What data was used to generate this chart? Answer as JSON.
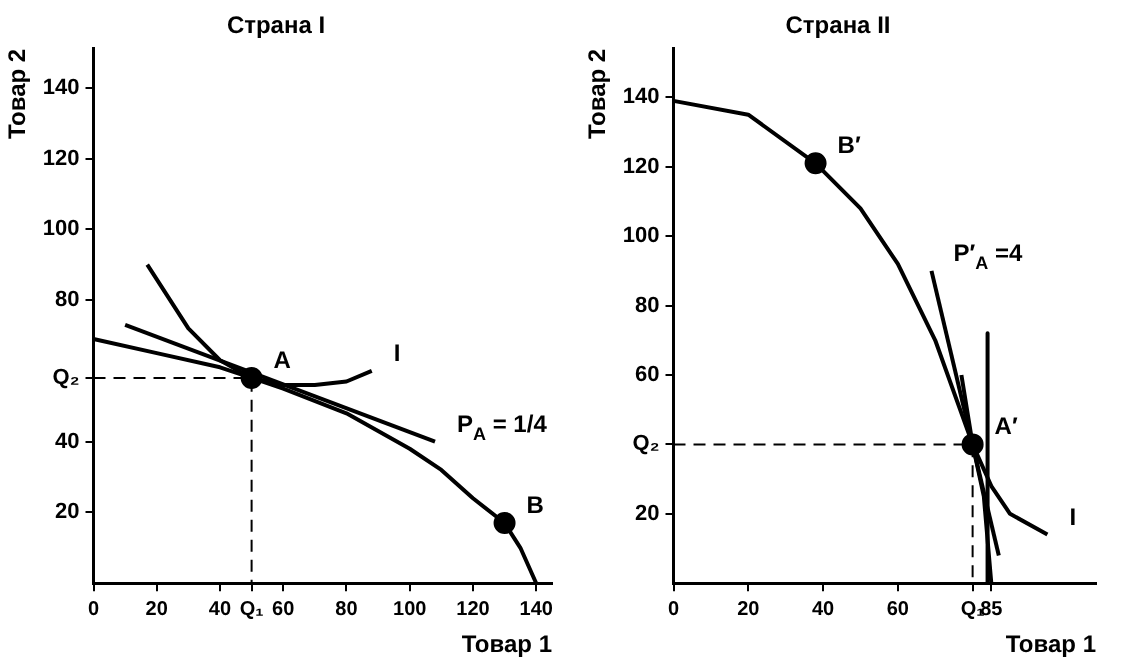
{
  "chart_data": [
    {
      "type": "line",
      "title": "Страна I",
      "xlabel": "Товар 1",
      "ylabel": "Товар 2",
      "xlim": [
        0,
        145
      ],
      "ylim": [
        0,
        151
      ],
      "xticks": [
        0,
        20,
        40,
        {
          "value": 50,
          "label": "Q₁"
        },
        60,
        80,
        100,
        120,
        140
      ],
      "yticks": [
        20,
        40,
        {
          "value": 58,
          "label": "Q₂"
        },
        80,
        100,
        120,
        140
      ],
      "grid": false,
      "legend": false,
      "series": [
        {
          "color": "#000000",
          "x": [
            0,
            20,
            40,
            50,
            60,
            80,
            100,
            110,
            120,
            130,
            135,
            140
          ],
          "values": [
            69,
            65,
            61,
            58,
            55,
            48,
            38,
            32,
            24,
            17,
            10,
            0
          ]
        },
        {
          "color": "#000000",
          "x": [
            17,
            30,
            40,
            50,
            60,
            70,
            80,
            88
          ],
          "values": [
            90,
            72,
            63,
            58,
            56,
            56,
            57,
            60
          ]
        },
        {
          "color": "#000000",
          "x": [
            10,
            108
          ],
          "values": [
            73,
            40
          ]
        },
        {
          "color": "#000000",
          "line_style": "dashed",
          "x": [
            0,
            50,
            50
          ],
          "values": [
            58,
            58,
            0
          ]
        },
        {
          "type": "scatter",
          "marker": "circle",
          "color": "#000000",
          "x": [
            50,
            130
          ],
          "values": [
            58,
            17
          ]
        }
      ],
      "annotations": [
        {
          "text": "A",
          "x": 50,
          "y": 58
        },
        {
          "text": "B",
          "x": 130,
          "y": 17
        },
        {
          "text": "I",
          "x": 88,
          "y": 60
        },
        {
          "text": "P$_{A}$ = 1/4",
          "x": 108,
          "y": 40
        }
      ]
    },
    {
      "type": "line",
      "title": "Страна II",
      "xlabel": "Товар 1",
      "ylabel": "Товар 2",
      "xlim": [
        0,
        113
      ],
      "ylim": [
        0,
        154
      ],
      "xticks": [
        0,
        20,
        40,
        60,
        {
          "value": 80,
          "label": "Q₁"
        },
        85
      ],
      "yticks": [
        20,
        {
          "value": 40,
          "label": "Q₂"
        },
        60,
        80,
        100,
        120,
        140
      ],
      "grid": false,
      "legend": false,
      "series": [
        {
          "color": "#000000",
          "x": [
            0,
            20,
            38,
            50,
            60,
            70,
            80,
            83,
            85
          ],
          "values": [
            139,
            135,
            121,
            108,
            92,
            70,
            40,
            25,
            0
          ]
        },
        {
          "color": "#000000",
          "x": [
            77,
            80,
            85,
            90,
            100
          ],
          "values": [
            60,
            40,
            28,
            20,
            14
          ]
        },
        {
          "color": "#000000",
          "x": [
            69,
            87
          ],
          "values": [
            90,
            8
          ]
        },
        {
          "color": "#000000",
          "x": [
            84,
            84
          ],
          "values": [
            72,
            0
          ]
        },
        {
          "color": "#000000",
          "line_style": "dashed",
          "x": [
            0,
            80,
            80
          ],
          "values": [
            40,
            40,
            0
          ]
        },
        {
          "type": "scatter",
          "marker": "circle",
          "color": "#000000",
          "x": [
            38,
            80
          ],
          "values": [
            121,
            40
          ]
        }
      ],
      "annotations": [
        {
          "text": "B′",
          "x": 38,
          "y": 121
        },
        {
          "text": "A′",
          "x": 80,
          "y": 40
        },
        {
          "text": "I",
          "x": 100,
          "y": 14
        },
        {
          "text": "P′$_{A}$ =4",
          "x": 69,
          "y": 90
        }
      ]
    }
  ]
}
